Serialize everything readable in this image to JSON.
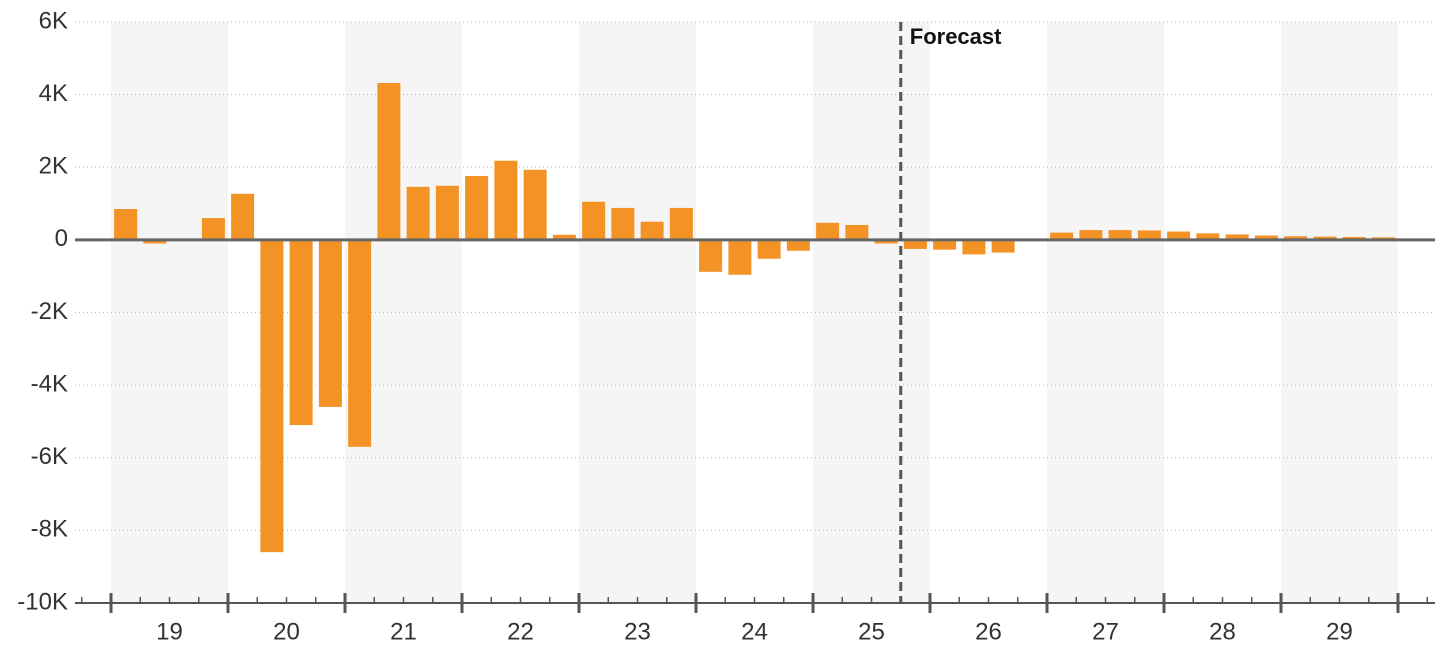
{
  "chart_data": {
    "type": "bar",
    "color": "#f39325",
    "categories": [
      "19",
      null,
      null,
      null,
      "20",
      null,
      null,
      null,
      "21",
      null,
      null,
      null,
      "22",
      null,
      null,
      null,
      "23",
      null,
      null,
      null,
      "24",
      null,
      null,
      null,
      "25",
      null,
      null,
      null,
      "26",
      null,
      null,
      null,
      "27",
      null,
      null,
      null,
      "28",
      null,
      null,
      null,
      "29",
      null,
      null,
      null
    ],
    "values": [
      850,
      -100,
      -20,
      600,
      1270,
      -8600,
      -5100,
      -4600,
      -5700,
      4320,
      1460,
      1490,
      1760,
      2180,
      1930,
      140,
      1050,
      880,
      500,
      880,
      -880,
      -960,
      -520,
      -300,
      470,
      410,
      -100,
      -250,
      -270,
      -400,
      -350,
      20,
      200,
      270,
      270,
      260,
      230,
      180,
      150,
      120,
      100,
      90,
      80,
      70
    ],
    "ylim": [
      -10000,
      6000
    ],
    "yticks": [
      {
        "value": -10000,
        "label": "-10K"
      },
      {
        "value": -8000,
        "label": "-8K"
      },
      {
        "value": -6000,
        "label": "-6K"
      },
      {
        "value": -4000,
        "label": "-4K"
      },
      {
        "value": -2000,
        "label": "-2K"
      },
      0,
      {
        "value": 2000,
        "label": "2K"
      },
      {
        "value": 4000,
        "label": "4K"
      },
      {
        "value": 6000,
        "label": "6K"
      }
    ],
    "grid": true,
    "forecast": {
      "label": "Forecast",
      "index": 27
    }
  }
}
